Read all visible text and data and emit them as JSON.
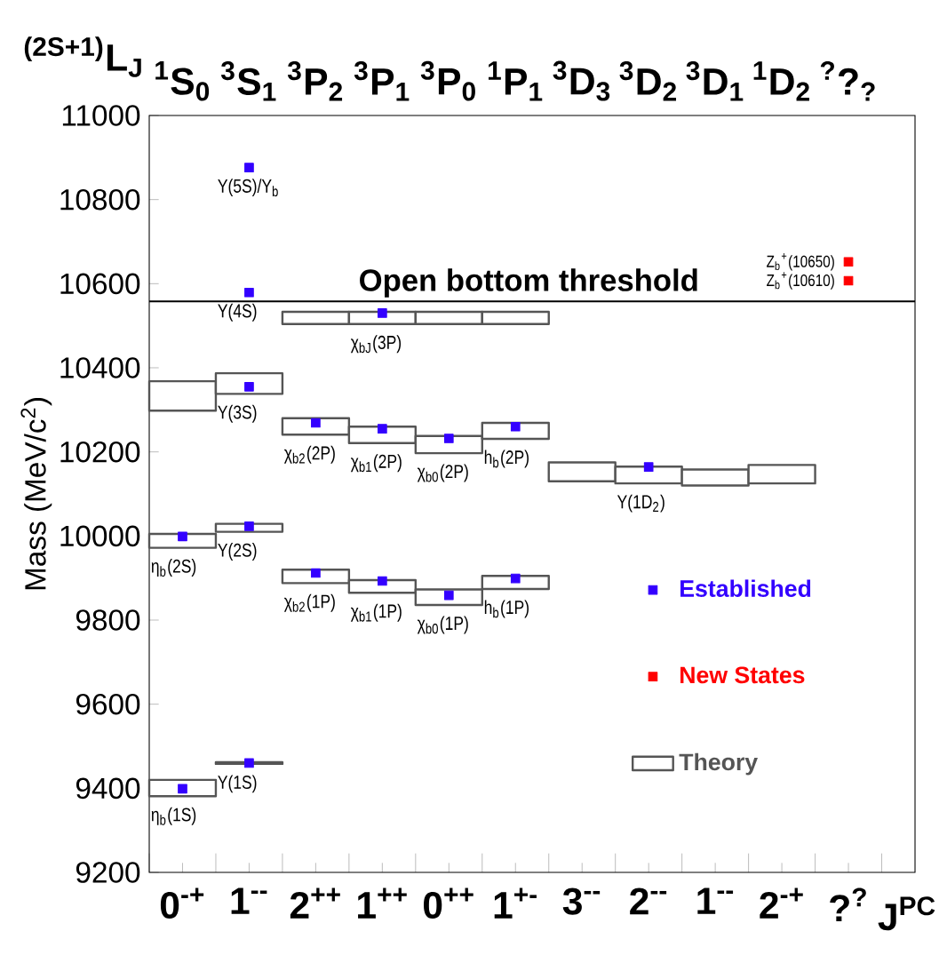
{
  "chart_data": {
    "type": "scatter",
    "ylabel": "Mass (MeV/c$^{2}$)",
    "xlabel": "J$^{PC}$",
    "categories": [
      "0$^{-+}$",
      "1$^{--}$",
      "2$^{++}$",
      "1$^{++}$",
      "0$^{++}$",
      "1$^{+-}$",
      "3$^{--}$",
      "2$^{--}$",
      "1$^{--}$",
      "2$^{-+}$",
      "?$^{?}$"
    ],
    "ylim": [
      9200,
      11000
    ],
    "yticks": [
      9200,
      9400,
      9600,
      9800,
      10000,
      10200,
      10400,
      10600,
      10800,
      11000
    ],
    "marker": "square",
    "legend": "right",
    "series": [
      {
        "name": "Established",
        "color": "#3300ff",
        "values": [
          9399,
          9460,
          9912,
          9893,
          9859,
          9899,
          null,
          10164,
          null,
          null,
          null
        ]
      },
      {
        "color": "#3300ff",
        "values": [
          9999,
          10023,
          10269,
          10255,
          10232,
          10260,
          null,
          null,
          null,
          null,
          null
        ]
      },
      {
        "color": "#3300ff",
        "values": [
          null,
          10355,
          null,
          10530,
          null,
          null,
          null,
          null,
          null,
          null,
          null
        ]
      },
      {
        "color": "#3300ff",
        "values": [
          null,
          10579,
          null,
          null,
          null,
          null,
          null,
          null,
          null,
          null,
          null
        ]
      },
      {
        "color": "#3300ff",
        "values": [
          null,
          10876,
          null,
          null,
          null,
          null,
          null,
          null,
          null,
          null,
          null
        ]
      },
      {
        "name": "New States",
        "color": "#ff0000",
        "values": [
          null,
          null,
          null,
          null,
          null,
          null,
          null,
          null,
          null,
          null,
          10607
        ]
      },
      {
        "color": "#ff0000",
        "values": [
          null,
          null,
          null,
          null,
          null,
          null,
          null,
          null,
          null,
          null,
          10652
        ]
      },
      {
        "name": "Theory",
        "type": "bar",
        "color": "#555555",
        "base": [
          9381,
          9458,
          9888,
          9865,
          9836,
          9874,
          null,
          null,
          null,
          null,
          null
        ],
        "values": [
          39,
          4,
          32,
          30,
          37,
          31,
          null,
          null,
          null,
          null,
          null
        ]
      },
      {
        "type": "bar",
        "color": "#555555",
        "base": [
          9972,
          10010,
          null,
          null,
          null,
          null,
          null,
          null,
          null,
          null,
          null
        ],
        "values": [
          33,
          19,
          null,
          null,
          null,
          null,
          null,
          null,
          null,
          null,
          null
        ]
      },
      {
        "type": "bar",
        "color": "#555555",
        "base": [
          10298,
          10338,
          10241,
          10221,
          10197,
          10231,
          null,
          null,
          null,
          null,
          null
        ],
        "values": [
          70,
          49,
          39,
          39,
          41,
          38,
          null,
          null,
          null,
          null,
          null
        ]
      },
      {
        "type": "bar",
        "color": "#555555",
        "base": [
          null,
          null,
          10504,
          10504,
          10504,
          10504,
          null,
          null,
          null,
          null,
          null
        ],
        "values": [
          null,
          null,
          29,
          29,
          29,
          29,
          null,
          null,
          null,
          null,
          null
        ]
      },
      {
        "type": "bar",
        "color": "#555555",
        "base": [
          null,
          null,
          null,
          null,
          null,
          null,
          10130,
          10125,
          10120,
          10125,
          null
        ],
        "values": [
          null,
          null,
          null,
          null,
          null,
          null,
          45,
          40,
          38,
          44,
          null
        ]
      }
    ],
    "ref_lines": [
      {
        "axis": "y",
        "value": 10558,
        "label": "Open bottom threshold"
      }
    ],
    "annotations": [
      "$^{(2S+1)}$L$_{J}$",
      "$^{1}$S$_{0}$",
      "$^{3}$S$_{1}$",
      "$^{3}$P$_{2}$",
      "$^{3}$P$_{1}$",
      "$^{3}$P$_{0}$",
      "$^{1}$P$_{1}$",
      "$^{3}$D$_{3}$",
      "$^{3}$D$_{2}$",
      "$^{3}$D$_{1}$",
      "$^{1}$D$_{2}$",
      "$^{?}$?$_{?}$",
      {
        "text": "Υ(5S)/Υ$_{b}$",
        "x": "1$^{--}$",
        "y": 10876
      },
      {
        "text": "Υ(4S)",
        "x": "1$^{--}$",
        "y": 10579
      },
      {
        "text": "χ$_{bJ}$(3P)",
        "x": "1$^{++}$",
        "y": 10530
      },
      {
        "text": "Υ(3S)",
        "x": "1$^{--}$",
        "y": 10355
      },
      {
        "text": "χ$_{b2}$(2P)",
        "x": "2$^{++}$",
        "y": 10269
      },
      {
        "text": "χ$_{b1}$(2P)",
        "x": "1$^{++}$",
        "y": 10255
      },
      {
        "text": "χ$_{b0}$(2P)",
        "x": "0$^{++}$",
        "y": 10232
      },
      {
        "text": "h$_{b}$(2P)",
        "x": "1$^{+-}$",
        "y": 10260
      },
      {
        "text": "Υ(1D$_{2}$)",
        "x": "2$^{--}$",
        "y": 10164
      },
      {
        "text": "η$_{b}$(2S)",
        "x": "0$^{-+}$",
        "y": 9999
      },
      {
        "text": "Υ(2S)",
        "x": "1$^{--}$",
        "y": 10023
      },
      {
        "text": "χ$_{b2}$(1P)",
        "x": "2$^{++}$",
        "y": 9912
      },
      {
        "text": "χ$_{b1}$(1P)",
        "x": "1$^{++}$",
        "y": 9893
      },
      {
        "text": "χ$_{b0}$(1P)",
        "x": "0$^{++}$",
        "y": 9859
      },
      {
        "text": "h$_{b}$(1P)",
        "x": "1$^{+-}$",
        "y": 9899
      },
      {
        "text": "Υ(1S)",
        "x": "1$^{--}$",
        "y": 9460
      },
      {
        "text": "η$_{b}$(1S)",
        "x": "0$^{-+}$",
        "y": 9399
      },
      {
        "text": "Z$_{b}$$^{+}$(10650)",
        "x": "?$^{?}$",
        "y": 10652
      },
      {
        "text": "Z$_{b}$$^{+}$(10610)",
        "x": "?$^{?}$",
        "y": 10607
      }
    ]
  }
}
